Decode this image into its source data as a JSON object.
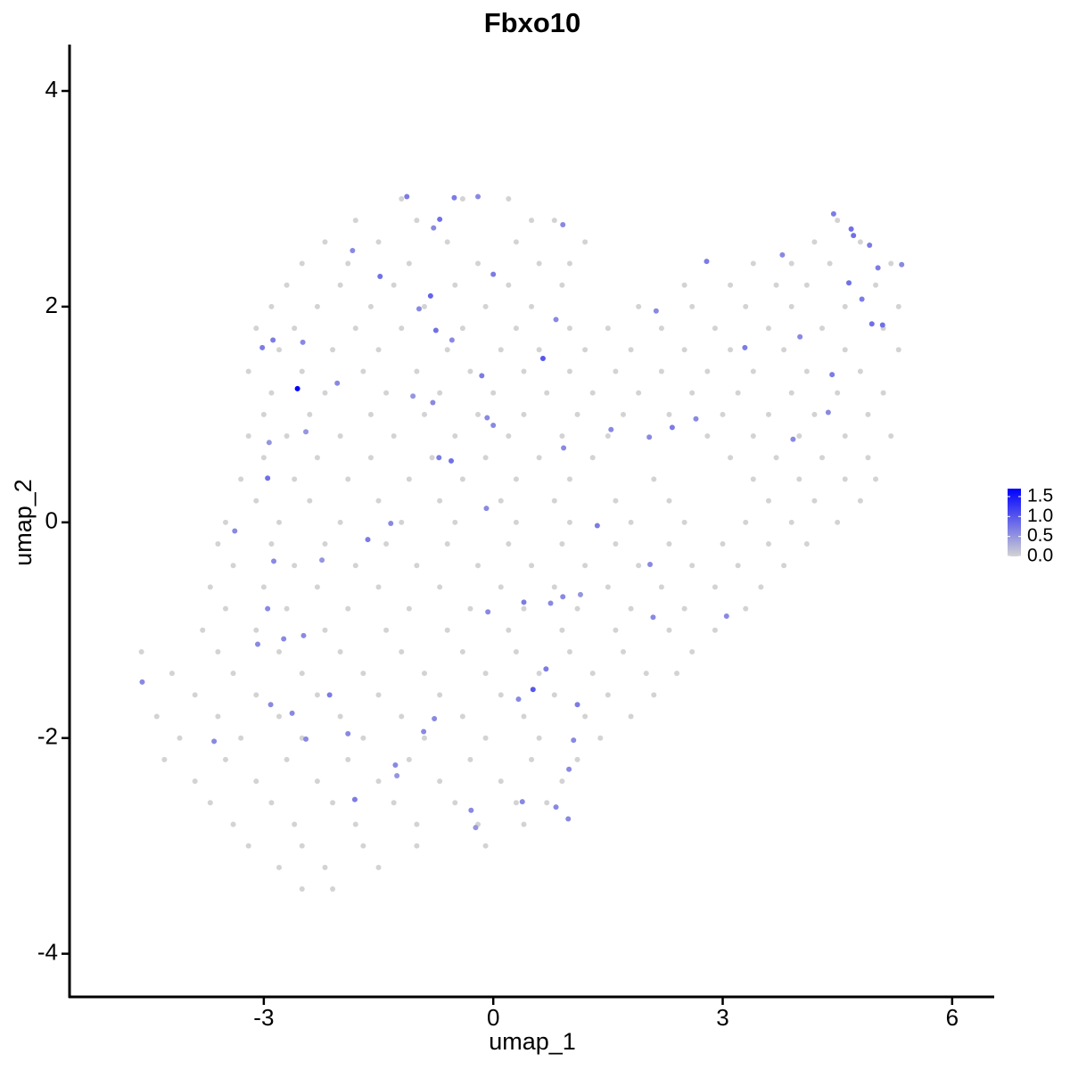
{
  "chart_data": {
    "type": "scatter",
    "title": "Fbxo10",
    "x_label": "umap_1",
    "y_label": "umap_2",
    "xlim": [
      -5.54,
      6.55
    ],
    "ylim": [
      -4.4,
      4.43
    ],
    "xticks": [
      -3,
      0,
      3,
      6
    ],
    "yticks": [
      -4,
      -2,
      0,
      2,
      4
    ],
    "low_color": "#d3d3d3",
    "high_color": "#0000ff",
    "clim": [
      0,
      1.7
    ],
    "cticks": [
      {
        "value": 0,
        "label": "0.0"
      },
      {
        "value": 0.5,
        "label": "0.5"
      },
      {
        "value": 1,
        "label": "1.0"
      },
      {
        "value": 1.5,
        "label": "1.5"
      }
    ],
    "x": [
      -1.2,
      -0.4,
      0.2,
      -1.8,
      -1.0,
      0.5,
      0.8,
      4.5,
      -2.2,
      -1.5,
      -0.6,
      0.3,
      1.2,
      4.2,
      4.8,
      -2.5,
      -1.9,
      -1.1,
      -0.2,
      0.6,
      1.0,
      3.4,
      3.9,
      4.4,
      5.2,
      -2.7,
      -2.0,
      -1.3,
      -0.5,
      0.2,
      0.9,
      2.5,
      3.1,
      3.7,
      4.1,
      5.0,
      -2.9,
      -2.3,
      -1.6,
      -0.9,
      -0.1,
      0.5,
      1.9,
      2.6,
      3.3,
      3.9,
      4.6,
      5.3,
      -3.1,
      -2.6,
      -1.8,
      -1.2,
      -0.4,
      0.3,
      1.0,
      1.5,
      2.2,
      2.9,
      3.6,
      4.3,
      5.1,
      -2.8,
      -2.1,
      -1.5,
      -0.6,
      0.1,
      0.6,
      1.2,
      1.8,
      2.5,
      3.1,
      3.8,
      4.6,
      5.3,
      -3.2,
      -2.5,
      -1.7,
      -1.0,
      -0.3,
      0.4,
      1.0,
      1.6,
      2.2,
      2.8,
      3.4,
      4.1,
      4.8,
      -2.9,
      -2.2,
      -1.4,
      -0.7,
      0.0,
      0.7,
      1.3,
      1.9,
      2.6,
      3.2,
      3.9,
      4.5,
      5.1,
      -3.0,
      -2.4,
      -1.6,
      -0.9,
      -0.2,
      0.4,
      1.1,
      1.7,
      2.3,
      3.0,
      3.6,
      4.2,
      4.9,
      -3.2,
      -2.7,
      -2.0,
      -1.3,
      -0.5,
      0.2,
      0.9,
      1.5,
      2.8,
      3.4,
      4.0,
      4.6,
      5.2,
      -3.0,
      -2.3,
      -1.6,
      -0.8,
      -0.1,
      0.6,
      1.3,
      3.1,
      3.7,
      4.3,
      4.9,
      -3.3,
      -2.6,
      -1.9,
      -1.1,
      -0.4,
      0.3,
      1.0,
      2.1,
      3.4,
      4.0,
      4.6,
      5.0,
      -3.1,
      -2.4,
      -1.5,
      -0.7,
      0.1,
      0.8,
      1.6,
      2.3,
      3.6,
      4.2,
      4.8,
      -3.5,
      -2.8,
      -2.0,
      -1.2,
      -0.5,
      0.3,
      1.0,
      1.8,
      2.5,
      3.3,
      3.9,
      4.5,
      -3.6,
      -2.9,
      -2.2,
      -1.4,
      -0.6,
      0.2,
      0.9,
      1.6,
      2.3,
      3.0,
      3.6,
      4.1,
      -3.4,
      -2.6,
      -1.8,
      -1.0,
      -0.2,
      0.5,
      1.2,
      1.9,
      2.6,
      3.2,
      3.8,
      -3.7,
      -3.0,
      -2.3,
      -1.5,
      -0.7,
      0.1,
      0.8,
      1.5,
      2.2,
      2.9,
      3.5,
      -3.5,
      -2.7,
      -1.9,
      -1.1,
      -0.3,
      0.4,
      1.1,
      1.8,
      2.5,
      3.3,
      -3.8,
      -3.1,
      -2.2,
      -1.4,
      -0.6,
      0.2,
      0.9,
      1.6,
      2.3,
      2.9,
      -4.6,
      -3.6,
      -2.8,
      -2.0,
      -1.2,
      -0.4,
      0.3,
      1.0,
      1.7,
      2.6,
      -4.2,
      -3.4,
      -2.5,
      -1.7,
      -0.9,
      -0.1,
      0.6,
      1.3,
      2.0,
      2.4,
      -3.9,
      -3.1,
      -2.3,
      -1.5,
      -0.7,
      0.1,
      0.8,
      1.5,
      2.1,
      -4.4,
      -3.6,
      -2.8,
      -2.0,
      -1.2,
      -0.4,
      0.4,
      1.2,
      1.8,
      -4.1,
      -3.3,
      -2.5,
      -1.7,
      -0.9,
      -0.1,
      0.6,
      1.4,
      -4.3,
      -3.5,
      -2.7,
      -1.9,
      -1.1,
      -0.3,
      0.5,
      1.1,
      -3.9,
      -3.1,
      -2.3,
      -1.5,
      -0.7,
      0.1,
      0.9,
      -3.7,
      -2.9,
      -2.1,
      -1.3,
      -0.5,
      0.3,
      0.7,
      -3.4,
      -2.6,
      -1.8,
      -1.0,
      -0.2,
      0.4,
      -3.2,
      -2.5,
      -1.7,
      -1.0,
      -0.1,
      -2.8,
      -2.2,
      -1.5,
      -2.5,
      -2.1,
      -2.56,
      -3.02,
      -2.88,
      -2.49,
      -1.84,
      -1.48,
      -1.13,
      -0.7,
      -0.78,
      -0.51,
      -0.2,
      0.0,
      -0.82,
      -0.97,
      -0.75,
      -0.54,
      -0.15,
      0.65,
      0.82,
      0.91,
      -0.08,
      0.0,
      -0.79,
      -1.05,
      -2.04,
      -2.45,
      -2.93,
      -2.95,
      -3.38,
      -2.87,
      -2.24,
      -1.64,
      -1.34,
      -0.71,
      -0.55,
      0.92,
      1.54,
      2.04,
      2.34,
      2.65,
      2.79,
      2.13,
      3.29,
      4.01,
      4.43,
      4.38,
      3.92,
      3.78,
      4.45,
      4.68,
      4.71,
      4.92,
      4.65,
      4.82,
      5.03,
      5.34,
      4.95,
      5.09,
      1.36,
      2.05,
      2.09,
      3.05,
      0.75,
      0.91,
      1.14,
      0.4,
      -0.07,
      0.69,
      0.52,
      0.33,
      1.1,
      1.05,
      0.99,
      0.82,
      0.98,
      0.38,
      -0.29,
      -0.23,
      -0.77,
      -0.91,
      -1.28,
      -1.26,
      -1.9,
      -1.81,
      -2.14,
      -2.63,
      -2.45,
      -2.91,
      -3.08,
      -2.74,
      -2.48,
      -2.95,
      -3.65,
      -4.59,
      -0.09
    ],
    "y": [
      3,
      3,
      3,
      2.8,
      2.8,
      2.8,
      2.8,
      2.8,
      2.6,
      2.6,
      2.6,
      2.6,
      2.6,
      2.6,
      2.6,
      2.4,
      2.4,
      2.4,
      2.4,
      2.4,
      2.4,
      2.4,
      2.4,
      2.4,
      2.4,
      2.2,
      2.2,
      2.2,
      2.2,
      2.2,
      2.2,
      2.2,
      2.2,
      2.2,
      2.2,
      2.2,
      2,
      2,
      2,
      2,
      2,
      2,
      2,
      2,
      2,
      2,
      2,
      2,
      1.8,
      1.8,
      1.8,
      1.8,
      1.8,
      1.8,
      1.8,
      1.8,
      1.8,
      1.8,
      1.8,
      1.8,
      1.8,
      1.6,
      1.6,
      1.6,
      1.6,
      1.6,
      1.6,
      1.6,
      1.6,
      1.6,
      1.6,
      1.6,
      1.6,
      1.6,
      1.4,
      1.4,
      1.4,
      1.4,
      1.4,
      1.4,
      1.4,
      1.4,
      1.4,
      1.4,
      1.4,
      1.4,
      1.4,
      1.2,
      1.2,
      1.2,
      1.2,
      1.2,
      1.2,
      1.2,
      1.2,
      1.2,
      1.2,
      1.2,
      1.2,
      1.2,
      1,
      1,
      1,
      1,
      1,
      1,
      1,
      1,
      1,
      1,
      1,
      1,
      1,
      0.8,
      0.8,
      0.8,
      0.8,
      0.8,
      0.8,
      0.8,
      0.8,
      0.8,
      0.8,
      0.8,
      0.8,
      0.8,
      0.6,
      0.6,
      0.6,
      0.6,
      0.6,
      0.6,
      0.6,
      0.6,
      0.6,
      0.6,
      0.6,
      0.4,
      0.4,
      0.4,
      0.4,
      0.4,
      0.4,
      0.4,
      0.4,
      0.4,
      0.4,
      0.4,
      0.4,
      0.2,
      0.2,
      0.2,
      0.2,
      0.2,
      0.2,
      0.2,
      0.2,
      0.2,
      0.2,
      0.2,
      0,
      0,
      0,
      0,
      0,
      0,
      0,
      0,
      0,
      0,
      0,
      0,
      -0.2,
      -0.2,
      -0.2,
      -0.2,
      -0.2,
      -0.2,
      -0.2,
      -0.2,
      -0.2,
      -0.2,
      -0.2,
      -0.2,
      -0.4,
      -0.4,
      -0.4,
      -0.4,
      -0.4,
      -0.4,
      -0.4,
      -0.4,
      -0.4,
      -0.4,
      -0.4,
      -0.6,
      -0.6,
      -0.6,
      -0.6,
      -0.6,
      -0.6,
      -0.6,
      -0.6,
      -0.6,
      -0.6,
      -0.6,
      -0.8,
      -0.8,
      -0.8,
      -0.8,
      -0.8,
      -0.8,
      -0.8,
      -0.8,
      -0.8,
      -0.8,
      -1,
      -1,
      -1,
      -1,
      -1,
      -1,
      -1,
      -1,
      -1,
      -1,
      -1.2,
      -1.2,
      -1.2,
      -1.2,
      -1.2,
      -1.2,
      -1.2,
      -1.2,
      -1.2,
      -1.2,
      -1.4,
      -1.4,
      -1.4,
      -1.4,
      -1.4,
      -1.4,
      -1.4,
      -1.4,
      -1.4,
      -1.4,
      -1.6,
      -1.6,
      -1.6,
      -1.6,
      -1.6,
      -1.6,
      -1.6,
      -1.6,
      -1.6,
      -1.8,
      -1.8,
      -1.8,
      -1.8,
      -1.8,
      -1.8,
      -1.8,
      -1.8,
      -1.8,
      -2,
      -2,
      -2,
      -2,
      -2,
      -2,
      -2,
      -2,
      -2.2,
      -2.2,
      -2.2,
      -2.2,
      -2.2,
      -2.2,
      -2.2,
      -2.2,
      -2.4,
      -2.4,
      -2.4,
      -2.4,
      -2.4,
      -2.4,
      -2.4,
      -2.6,
      -2.6,
      -2.6,
      -2.6,
      -2.6,
      -2.6,
      -2.6,
      -2.8,
      -2.8,
      -2.8,
      -2.8,
      -2.8,
      -2.8,
      -3,
      -3,
      -3,
      -3,
      -3,
      -3.2,
      -3.2,
      -3.2,
      -3.4,
      -3.4,
      1.24,
      1.62,
      1.69,
      1.67,
      2.52,
      2.28,
      3.02,
      2.81,
      2.73,
      3.01,
      3.02,
      2.3,
      2.1,
      1.98,
      1.78,
      1.69,
      1.36,
      1.52,
      1.88,
      2.76,
      0.97,
      0.9,
      1.11,
      1.17,
      1.29,
      0.84,
      0.74,
      0.41,
      -0.08,
      -0.36,
      -0.35,
      -0.16,
      -0.01,
      0.6,
      0.57,
      0.69,
      0.86,
      0.79,
      0.88,
      0.96,
      2.42,
      1.96,
      1.62,
      1.72,
      1.37,
      1.02,
      0.77,
      2.48,
      2.86,
      2.72,
      2.66,
      2.57,
      2.22,
      2.07,
      2.36,
      2.39,
      1.84,
      1.83,
      -0.03,
      -0.39,
      -0.88,
      -0.87,
      -0.75,
      -0.69,
      -0.67,
      -0.74,
      -0.83,
      -1.36,
      -1.55,
      -1.64,
      -1.69,
      -2.02,
      -2.29,
      -2.64,
      -2.75,
      -2.59,
      -2.67,
      -2.83,
      -1.82,
      -1.94,
      -2.25,
      -2.35,
      -1.96,
      -2.57,
      -1.6,
      -1.77,
      -2.01,
      -1.69,
      -1.13,
      -1.08,
      -1.05,
      -0.8,
      -2.03,
      -1.48,
      0.13
    ],
    "expression": [
      0,
      0,
      0,
      0,
      0,
      0,
      0,
      0,
      0,
      0,
      0,
      0,
      0,
      0,
      0,
      0,
      0,
      0,
      0,
      0,
      0,
      0,
      0,
      0,
      0,
      0,
      0,
      0,
      0,
      0,
      0,
      0,
      0,
      0,
      0,
      0,
      0,
      0,
      0,
      0,
      0,
      0,
      0,
      0,
      0,
      0,
      0,
      0,
      0,
      0,
      0,
      0,
      0,
      0,
      0,
      0,
      0,
      0,
      0,
      0,
      0,
      0,
      0,
      0,
      0,
      0,
      0,
      0,
      0,
      0,
      0,
      0,
      0,
      0,
      0,
      0,
      0,
      0,
      0,
      0,
      0,
      0,
      0,
      0,
      0,
      0,
      0,
      0,
      0,
      0,
      0,
      0,
      0,
      0,
      0,
      0,
      0,
      0,
      0,
      0,
      0,
      0,
      0,
      0,
      0,
      0,
      0,
      0,
      0,
      0,
      0,
      0,
      0,
      0,
      0,
      0,
      0,
      0,
      0,
      0,
      0,
      0,
      0,
      0,
      0,
      0,
      0,
      0,
      0,
      0,
      0,
      0,
      0,
      0,
      0,
      0,
      0,
      0,
      0,
      0,
      0,
      0,
      0,
      0,
      0,
      0,
      0,
      0,
      0,
      0,
      0,
      0,
      0,
      0,
      0,
      0,
      0,
      0,
      0,
      0,
      0,
      0,
      0,
      0,
      0,
      0,
      0,
      0,
      0,
      0,
      0,
      0,
      0,
      0,
      0,
      0,
      0,
      0,
      0,
      0,
      0,
      0,
      0,
      0,
      0,
      0,
      0,
      0,
      0,
      0,
      0,
      0,
      0,
      0,
      0,
      0,
      0,
      0,
      0,
      0,
      0,
      0,
      0,
      0,
      0,
      0,
      0,
      0,
      0,
      0,
      0,
      0,
      0,
      0,
      0,
      0,
      0,
      0,
      0,
      0,
      0,
      0,
      0,
      0,
      0,
      0,
      0,
      0,
      0,
      0,
      0,
      0,
      0,
      0,
      0,
      0,
      0,
      0,
      0,
      0,
      0,
      0,
      0,
      0,
      0,
      0,
      0,
      0,
      0,
      0,
      0,
      0,
      0,
      0,
      0,
      0,
      0,
      0,
      0,
      0,
      0,
      0,
      0,
      0,
      0,
      0,
      0,
      0,
      0,
      0,
      0,
      0,
      0,
      0,
      0,
      0,
      0,
      0,
      0,
      0,
      0,
      0,
      0,
      0,
      0,
      0,
      0,
      0,
      0,
      0,
      0,
      0,
      0,
      0,
      0,
      0,
      0,
      0,
      0,
      0,
      0,
      0,
      0,
      0,
      0,
      0,
      0,
      0,
      0,
      0,
      1.7,
      0.7,
      0.7,
      0.6,
      0.6,
      0.8,
      0.7,
      0.8,
      0.6,
      0.7,
      0.6,
      0.7,
      0.9,
      0.6,
      0.8,
      0.6,
      0.7,
      1.0,
      0.6,
      0.6,
      0.6,
      0.6,
      0.6,
      0.5,
      0.6,
      0.5,
      0.5,
      0.8,
      0.6,
      0.6,
      0.5,
      0.7,
      0.6,
      0.7,
      0.8,
      0.6,
      0.6,
      0.6,
      0.7,
      0.6,
      0.7,
      0.6,
      0.7,
      0.6,
      0.7,
      0.6,
      0.6,
      0.6,
      0.7,
      0.8,
      0.8,
      0.7,
      0.8,
      0.7,
      0.7,
      0.6,
      0.8,
      0.8,
      0.7,
      0.6,
      0.6,
      0.6,
      0.6,
      0.6,
      0.5,
      0.7,
      0.6,
      0.7,
      1.0,
      0.6,
      0.7,
      0.6,
      0.6,
      0.6,
      0.6,
      0.6,
      0.6,
      0.5,
      0.6,
      0.6,
      0.6,
      0.5,
      0.6,
      0.7,
      0.7,
      0.6,
      0.6,
      0.6,
      0.6,
      0.6,
      0.6,
      0.6,
      0.6,
      0.6,
      0.6
    ]
  }
}
